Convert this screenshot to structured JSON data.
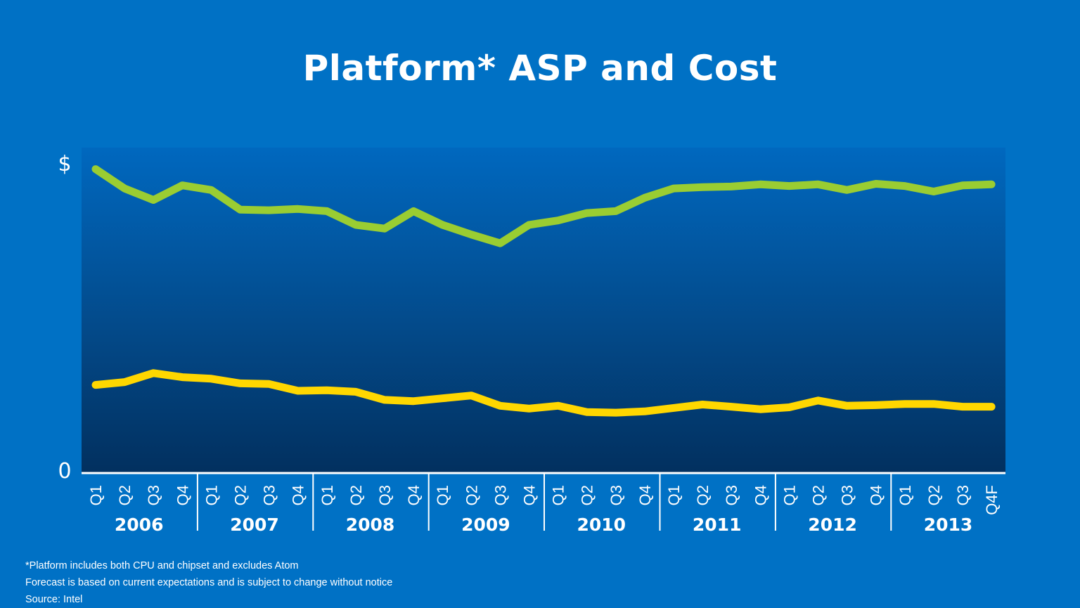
{
  "chart_data": {
    "type": "line",
    "title": "Platform* ASP and Cost",
    "y_tick_labels": [
      "$",
      "0"
    ],
    "ylim": [
      0,
      100
    ],
    "x": [
      "Q1",
      "Q2",
      "Q3",
      "Q4",
      "Q1",
      "Q2",
      "Q3",
      "Q4",
      "Q1",
      "Q2",
      "Q3",
      "Q4",
      "Q1",
      "Q2",
      "Q3",
      "Q4",
      "Q1",
      "Q2",
      "Q3",
      "Q4",
      "Q1",
      "Q2",
      "Q3",
      "Q4",
      "Q1",
      "Q2",
      "Q3",
      "Q4",
      "Q1",
      "Q2",
      "Q3",
      "Q4F"
    ],
    "years": [
      "2006",
      "2007",
      "2008",
      "2009",
      "2010",
      "2011",
      "2012",
      "2013"
    ],
    "series": [
      {
        "color": "#9acd32",
        "values": [
          97.6,
          91.4,
          87.7,
          92.4,
          90.9,
          84.6,
          84.4,
          84.8,
          84.1,
          79.7,
          78.5,
          84.1,
          79.7,
          76.6,
          73.8,
          79.7,
          81.1,
          83.5,
          84.1,
          88.4,
          91.4,
          91.8,
          92.0,
          92.7,
          92.2,
          92.7,
          90.9,
          92.9,
          92.2,
          90.4,
          92.4,
          92.7
        ]
      },
      {
        "color": "#ffd700",
        "values": [
          28.3,
          29.2,
          32.1,
          30.8,
          30.3,
          28.8,
          28.6,
          26.4,
          26.6,
          26.1,
          23.5,
          23.1,
          24.0,
          24.9,
          21.6,
          20.7,
          21.6,
          19.6,
          19.4,
          19.8,
          20.9,
          22.0,
          21.3,
          20.5,
          21.1,
          23.3,
          21.6,
          21.8,
          22.2,
          22.2,
          21.3,
          21.3
        ]
      }
    ],
    "grid": false,
    "legend": "none"
  },
  "footnotes": [
    "*Platform includes both CPU and chipset and excludes Atom",
    "Forecast  is based on current expectations and is subject to change without notice",
    "Source: Intel"
  ]
}
